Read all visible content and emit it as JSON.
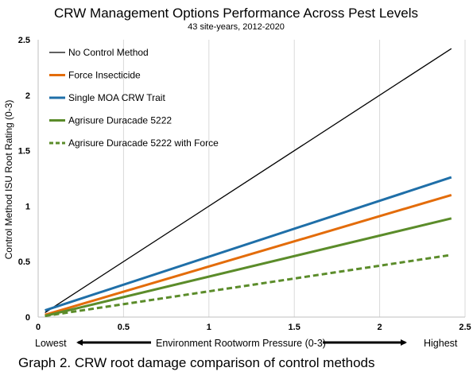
{
  "chart_data": {
    "type": "line",
    "title": "CRW Management Options Performance Across Pest Levels",
    "subtitle": "43 site-years, 2012-2020",
    "ylabel": "Control Method ISU Root Rating (0-3)",
    "x_axis": {
      "label": "Environment Rootworm Pressure (0-3)",
      "low_label": "Lowest",
      "high_label": "Highest"
    },
    "xlim": [
      0,
      2.5
    ],
    "ylim": [
      0,
      2.5
    ],
    "x_ticks": [
      "0",
      "0.5",
      "1",
      "1.5",
      "2",
      "2.5"
    ],
    "y_ticks": [
      "0",
      "0.5",
      "1",
      "1.5",
      "2",
      "2.5"
    ],
    "grid": "vertical",
    "legend_position": "top-left",
    "series": [
      {
        "name": "No Control Method",
        "color": "#000000",
        "dash": "solid",
        "x": [
          0.04,
          2.42
        ],
        "y": [
          0.04,
          2.42
        ]
      },
      {
        "name": "Force Insecticide",
        "color": "#e36c0a",
        "dash": "solid",
        "x": [
          0.04,
          2.42
        ],
        "y": [
          0.02,
          1.1
        ]
      },
      {
        "name": "Single MOA CRW Trait",
        "color": "#1f6fa8",
        "dash": "solid",
        "x": [
          0.04,
          2.42
        ],
        "y": [
          0.06,
          1.26
        ]
      },
      {
        "name": "Agrisure Duracade 5222",
        "color": "#5b8c2a",
        "dash": "solid",
        "x": [
          0.04,
          2.42
        ],
        "y": [
          0.01,
          0.89
        ]
      },
      {
        "name": "Agrisure Duracade 5222 with Force",
        "color": "#5b8c2a",
        "dash": "dashed",
        "x": [
          0.04,
          2.42
        ],
        "y": [
          0.01,
          0.56
        ]
      }
    ]
  },
  "caption": "Graph 2. CRW root damage comparison of control methods"
}
